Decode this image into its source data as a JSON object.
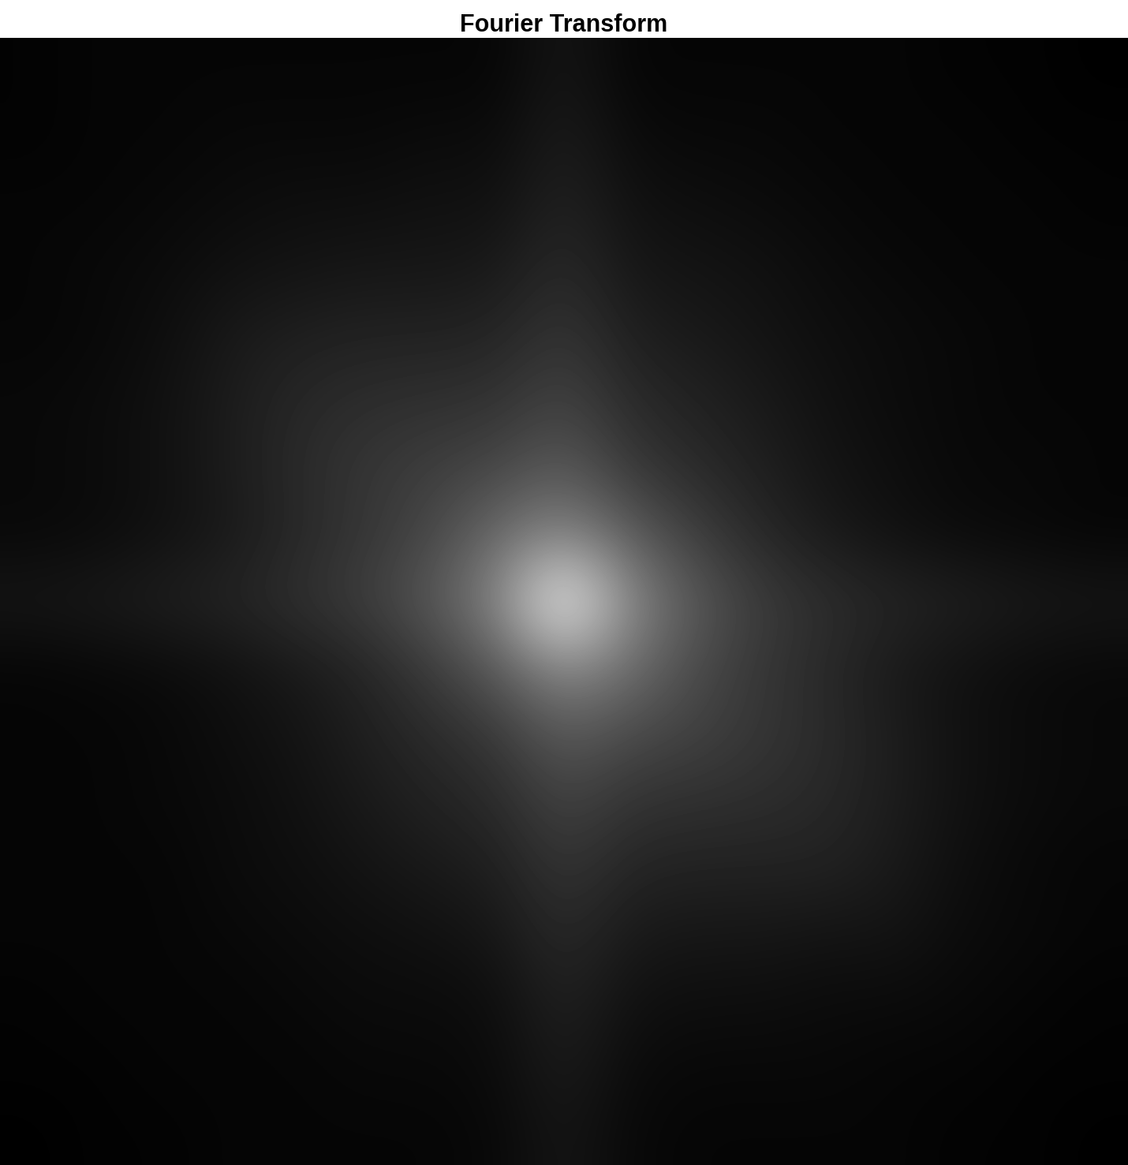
{
  "chart_data": {
    "type": "heatmap",
    "title": "Fourier Transform",
    "tick_labels": false,
    "color": "gray",
    "cells": [
      [
        76,
        78,
        78,
        78,
        78,
        78,
        78,
        78,
        90,
        78,
        78,
        78,
        78,
        78,
        76,
        76,
        74
      ],
      [
        76,
        78,
        78,
        80,
        80,
        80,
        82,
        82,
        94,
        82,
        80,
        80,
        78,
        78,
        78,
        76,
        76
      ],
      [
        78,
        78,
        80,
        82,
        84,
        84,
        86,
        86,
        98,
        86,
        84,
        82,
        80,
        78,
        78,
        78,
        76
      ],
      [
        78,
        80,
        82,
        86,
        88,
        90,
        90,
        92,
        104,
        90,
        88,
        86,
        82,
        80,
        78,
        78,
        78
      ],
      [
        78,
        80,
        84,
        92,
        96,
        98,
        98,
        100,
        112,
        96,
        92,
        88,
        84,
        82,
        80,
        78,
        78
      ],
      [
        80,
        82,
        86,
        94,
        102,
        106,
        108,
        110,
        122,
        104,
        98,
        92,
        86,
        82,
        80,
        78,
        78
      ],
      [
        80,
        82,
        86,
        94,
        104,
        112,
        118,
        124,
        138,
        114,
        104,
        96,
        88,
        84,
        80,
        80,
        78
      ],
      [
        80,
        82,
        86,
        92,
        102,
        112,
        124,
        150,
        170,
        140,
        118,
        102,
        92,
        86,
        82,
        80,
        78
      ],
      [
        90,
        92,
        96,
        100,
        108,
        118,
        136,
        168,
        255,
        170,
        136,
        116,
        106,
        100,
        96,
        92,
        90
      ],
      [
        78,
        80,
        82,
        86,
        92,
        100,
        116,
        138,
        172,
        152,
        126,
        112,
        102,
        92,
        86,
        82,
        80
      ],
      [
        78,
        78,
        80,
        84,
        88,
        96,
        104,
        114,
        138,
        126,
        120,
        112,
        104,
        94,
        86,
        82,
        80
      ],
      [
        78,
        78,
        80,
        82,
        86,
        92,
        98,
        104,
        122,
        110,
        108,
        106,
        102,
        94,
        86,
        82,
        80
      ],
      [
        78,
        78,
        78,
        82,
        84,
        88,
        92,
        96,
        112,
        100,
        98,
        98,
        98,
        92,
        84,
        80,
        78
      ],
      [
        78,
        78,
        78,
        80,
        82,
        84,
        86,
        90,
        104,
        92,
        90,
        90,
        88,
        88,
        82,
        80,
        78
      ],
      [
        76,
        78,
        78,
        78,
        80,
        82,
        82,
        84,
        98,
        86,
        84,
        84,
        82,
        82,
        80,
        78,
        76
      ],
      [
        76,
        76,
        78,
        78,
        78,
        80,
        80,
        82,
        94,
        82,
        80,
        80,
        80,
        78,
        78,
        76,
        76
      ],
      [
        74,
        76,
        76,
        78,
        78,
        78,
        78,
        80,
        90,
        80,
        78,
        78,
        78,
        78,
        76,
        76,
        74
      ]
    ]
  }
}
